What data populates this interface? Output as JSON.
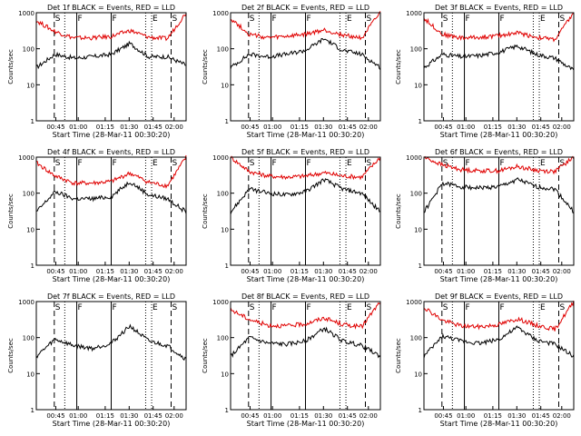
{
  "colors": {
    "events": "#000000",
    "lld": "#e00000",
    "axis": "#000000"
  },
  "shared": {
    "xlabel": "Start Time (28-Mar-11 00:30:20)",
    "ylabel": "Counts/sec",
    "x_ticks": [
      "00:45",
      "01:00",
      "01:15",
      "01:30",
      "01:45",
      "02:00"
    ],
    "y_ticks": [
      "1",
      "10",
      "100",
      "1000"
    ],
    "markers": [
      {
        "label": "S",
        "style": "dashed",
        "pos": "left"
      },
      {
        "label": "F",
        "style": "solid"
      },
      {
        "label": "F",
        "style": "solid"
      },
      {
        "label": "E",
        "style": "dotted"
      },
      {
        "label": "S",
        "style": "dashed"
      }
    ]
  },
  "chart_data": [
    {
      "type": "line",
      "title": "Det 1f BLACK = Events, RED = LLD",
      "yscale": "log",
      "ylim": [
        1,
        1000
      ],
      "series": [
        {
          "name": "Events",
          "values": [
            30,
            70,
            55,
            60,
            70,
            140,
            60,
            60,
            35
          ]
        },
        {
          "name": "LLD",
          "values": [
            600,
            300,
            200,
            200,
            220,
            320,
            210,
            190,
            1000
          ]
        }
      ]
    },
    {
      "type": "line",
      "title": "Det 2f BLACK = Events, RED = LLD",
      "yscale": "log",
      "ylim": [
        1,
        1000
      ],
      "series": [
        {
          "name": "Events",
          "values": [
            30,
            70,
            60,
            70,
            90,
            190,
            90,
            70,
            30
          ]
        },
        {
          "name": "LLD",
          "values": [
            700,
            250,
            200,
            220,
            250,
            330,
            240,
            200,
            1000
          ]
        }
      ]
    },
    {
      "type": "line",
      "title": "Det 3f BLACK = Events, RED = LLD",
      "yscale": "log",
      "ylim": [
        1,
        1000
      ],
      "series": [
        {
          "name": "Events",
          "values": [
            30,
            70,
            60,
            65,
            80,
            120,
            70,
            55,
            25
          ]
        },
        {
          "name": "LLD",
          "values": [
            700,
            250,
            200,
            210,
            230,
            280,
            210,
            180,
            1000
          ]
        }
      ]
    },
    {
      "type": "line",
      "title": "Det 4f BLACK = Events, RED = LLD",
      "yscale": "log",
      "ylim": [
        1,
        1000
      ],
      "series": [
        {
          "name": "Events",
          "values": [
            30,
            110,
            70,
            70,
            80,
            210,
            90,
            70,
            30
          ]
        },
        {
          "name": "LLD",
          "values": [
            700,
            300,
            190,
            190,
            210,
            360,
            200,
            160,
            1000
          ]
        }
      ]
    },
    {
      "type": "line",
      "title": "Det 5f BLACK = Events, RED = LLD",
      "yscale": "log",
      "ylim": [
        1,
        1000
      ],
      "series": [
        {
          "name": "Events",
          "values": [
            30,
            130,
            100,
            90,
            110,
            240,
            130,
            100,
            30
          ]
        },
        {
          "name": "LLD",
          "values": [
            1000,
            400,
            300,
            280,
            300,
            370,
            300,
            280,
            1000
          ]
        }
      ]
    },
    {
      "type": "line",
      "title": "Det 6f BLACK = Events, RED = LLD",
      "yscale": "log",
      "ylim": [
        1,
        1000
      ],
      "series": [
        {
          "name": "Events",
          "values": [
            30,
            190,
            150,
            140,
            150,
            240,
            150,
            130,
            30
          ]
        },
        {
          "name": "LLD",
          "values": [
            1000,
            600,
            450,
            420,
            420,
            550,
            430,
            400,
            1000
          ]
        }
      ]
    },
    {
      "type": "line",
      "title": "Det 7f BLACK = Events, RED = LLD",
      "yscale": "log",
      "ylim": [
        1,
        1000
      ],
      "series": [
        {
          "name": "Events",
          "values": [
            30,
            90,
            60,
            50,
            70,
            210,
            80,
            60,
            25
          ]
        }
      ]
    },
    {
      "type": "line",
      "title": "Det 8f BLACK = Events, RED = LLD",
      "yscale": "log",
      "ylim": [
        1,
        1000
      ],
      "series": [
        {
          "name": "Events",
          "values": [
            30,
            100,
            70,
            65,
            80,
            180,
            80,
            60,
            30
          ]
        },
        {
          "name": "LLD",
          "values": [
            600,
            320,
            220,
            210,
            240,
            350,
            230,
            200,
            1000
          ]
        }
      ]
    },
    {
      "type": "line",
      "title": "Det 9f BLACK = Events, RED = LLD",
      "yscale": "log",
      "ylim": [
        1,
        1000
      ],
      "series": [
        {
          "name": "Events",
          "values": [
            30,
            110,
            80,
            70,
            90,
            190,
            85,
            65,
            30
          ]
        },
        {
          "name": "LLD",
          "values": [
            700,
            300,
            210,
            200,
            230,
            330,
            220,
            170,
            1000
          ]
        }
      ]
    }
  ]
}
